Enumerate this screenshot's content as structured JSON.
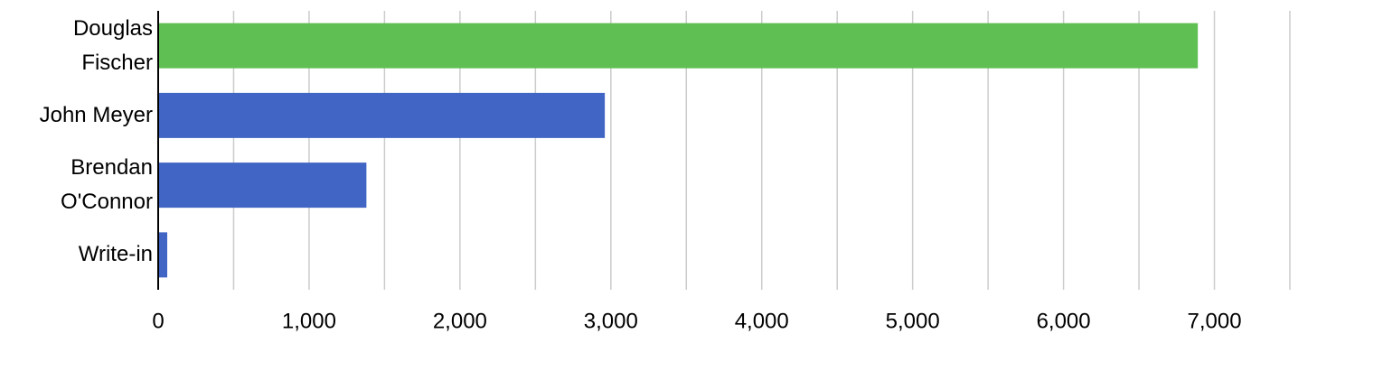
{
  "chart_data": {
    "type": "hbar",
    "categories": [
      "Douglas Fischer",
      "John Meyer",
      "Brendan O'Connor",
      "Write-in"
    ],
    "values": [
      6890,
      2960,
      1380,
      60
    ],
    "colors": [
      "#5fbf52",
      "#4165c4",
      "#4165c4",
      "#4165c4"
    ],
    "xlim": [
      0,
      7500
    ],
    "xticks": [
      0,
      {
        "value": 1000,
        "label": "1,000"
      },
      {
        "value": 2000,
        "label": "2,000"
      },
      {
        "value": 3000,
        "label": "3,000"
      },
      {
        "value": 4000,
        "label": "4,000"
      },
      {
        "value": 5000,
        "label": "5,000"
      },
      {
        "value": 6000,
        "label": "6,000"
      },
      {
        "value": 7000,
        "label": "7,000"
      }
    ],
    "xminor": [
      500,
      1500,
      2500,
      3500,
      4500,
      5500,
      6500,
      7500
    ],
    "grid": true
  }
}
